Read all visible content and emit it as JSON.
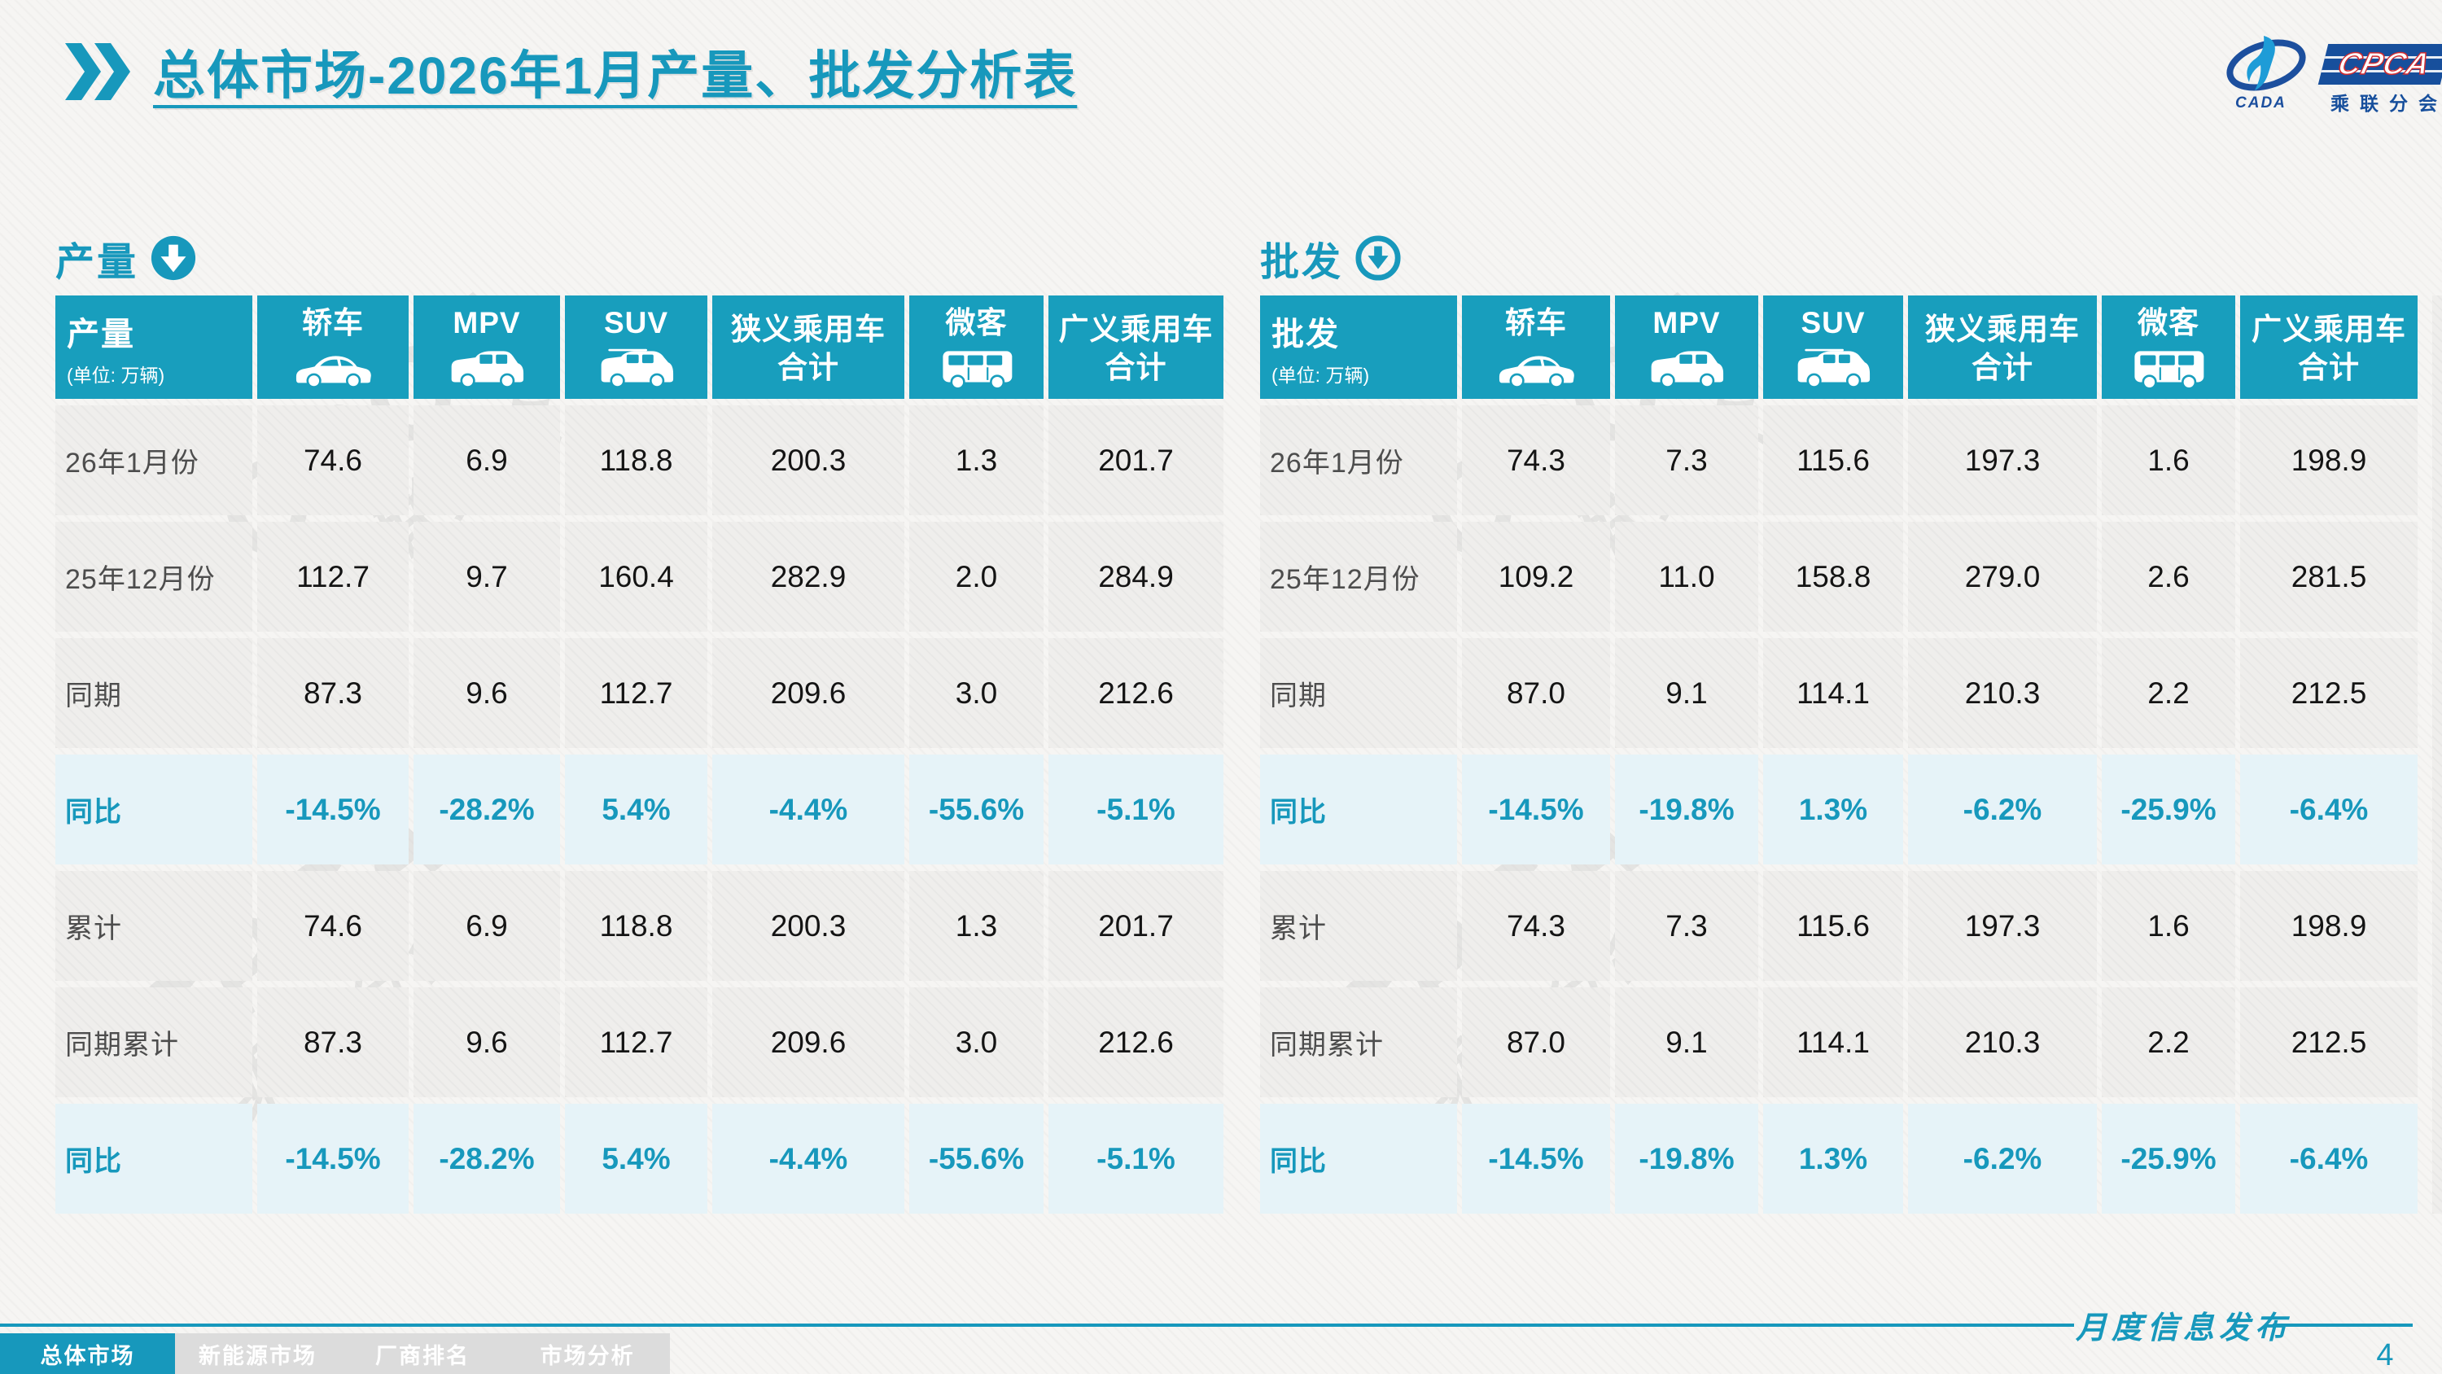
{
  "page": {
    "title": "总体市场-2026年1月产量、批发分析表",
    "page_number": "4",
    "footer_caption": "月度信息发布",
    "watermark_line1": "CPCA",
    "watermark_line2": "乘联分会"
  },
  "logo": {
    "cpca": "CPCA",
    "cada": "CADA",
    "subtitle": "乘联分会"
  },
  "colors": {
    "accent": "#189EBD",
    "highlight_row_bg": "#E6F3F8",
    "logo_blue": "#174F9C",
    "logo_red": "#CF2B31"
  },
  "nav": {
    "tabs": [
      {
        "label": "总体市场",
        "active": true
      },
      {
        "label": "新能源市场",
        "active": false
      },
      {
        "label": "厂商排名",
        "active": false
      },
      {
        "label": "市场分析",
        "active": false
      }
    ]
  },
  "tables": [
    {
      "id": "production",
      "section_label": "产量",
      "corner_label": "产量",
      "unit": "(单位: 万辆)",
      "columns": [
        {
          "label": "轿车",
          "icon": "sedan-icon"
        },
        {
          "label": "MPV",
          "icon": "mpv-icon"
        },
        {
          "label": "SUV",
          "icon": "suv-icon"
        },
        {
          "label": "狭义乘用车",
          "label2": "合计"
        },
        {
          "label": "微客",
          "icon": "minibus-icon"
        },
        {
          "label": "广义乘用车",
          "label2": "合计"
        }
      ],
      "rows": [
        {
          "label": "26年1月份",
          "highlight": false,
          "values": [
            "74.6",
            "6.9",
            "118.8",
            "200.3",
            "1.3",
            "201.7"
          ]
        },
        {
          "label": "25年12月份",
          "highlight": false,
          "values": [
            "112.7",
            "9.7",
            "160.4",
            "282.9",
            "2.0",
            "284.9"
          ]
        },
        {
          "label": "同期",
          "highlight": false,
          "values": [
            "87.3",
            "9.6",
            "112.7",
            "209.6",
            "3.0",
            "212.6"
          ]
        },
        {
          "label": "同比",
          "highlight": true,
          "values": [
            "-14.5%",
            "-28.2%",
            "5.4%",
            "-4.4%",
            "-55.6%",
            "-5.1%"
          ]
        },
        {
          "label": "累计",
          "highlight": false,
          "values": [
            "74.6",
            "6.9",
            "118.8",
            "200.3",
            "1.3",
            "201.7"
          ]
        },
        {
          "label": "同期累计",
          "highlight": false,
          "values": [
            "87.3",
            "9.6",
            "112.7",
            "209.6",
            "3.0",
            "212.6"
          ]
        },
        {
          "label": "同比",
          "highlight": true,
          "values": [
            "-14.5%",
            "-28.2%",
            "5.4%",
            "-4.4%",
            "-55.6%",
            "-5.1%"
          ]
        }
      ]
    },
    {
      "id": "wholesale",
      "section_label": "批发",
      "corner_label": "批发",
      "unit": "(单位: 万辆)",
      "columns": [
        {
          "label": "轿车",
          "icon": "sedan-icon"
        },
        {
          "label": "MPV",
          "icon": "mpv-icon"
        },
        {
          "label": "SUV",
          "icon": "suv-icon"
        },
        {
          "label": "狭义乘用车",
          "label2": "合计"
        },
        {
          "label": "微客",
          "icon": "minibus-icon"
        },
        {
          "label": "广义乘用车",
          "label2": "合计"
        }
      ],
      "rows": [
        {
          "label": "26年1月份",
          "highlight": false,
          "values": [
            "74.3",
            "7.3",
            "115.6",
            "197.3",
            "1.6",
            "198.9"
          ]
        },
        {
          "label": "25年12月份",
          "highlight": false,
          "values": [
            "109.2",
            "11.0",
            "158.8",
            "279.0",
            "2.6",
            "281.5"
          ]
        },
        {
          "label": "同期",
          "highlight": false,
          "values": [
            "87.0",
            "9.1",
            "114.1",
            "210.3",
            "2.2",
            "212.5"
          ]
        },
        {
          "label": "同比",
          "highlight": true,
          "values": [
            "-14.5%",
            "-19.8%",
            "1.3%",
            "-6.2%",
            "-25.9%",
            "-6.4%"
          ]
        },
        {
          "label": "累计",
          "highlight": false,
          "values": [
            "74.3",
            "7.3",
            "115.6",
            "197.3",
            "1.6",
            "198.9"
          ]
        },
        {
          "label": "同期累计",
          "highlight": false,
          "values": [
            "87.0",
            "9.1",
            "114.1",
            "210.3",
            "2.2",
            "212.5"
          ]
        },
        {
          "label": "同比",
          "highlight": true,
          "values": [
            "-14.5%",
            "-19.8%",
            "1.3%",
            "-6.2%",
            "-25.9%",
            "-6.4%"
          ]
        }
      ]
    }
  ]
}
